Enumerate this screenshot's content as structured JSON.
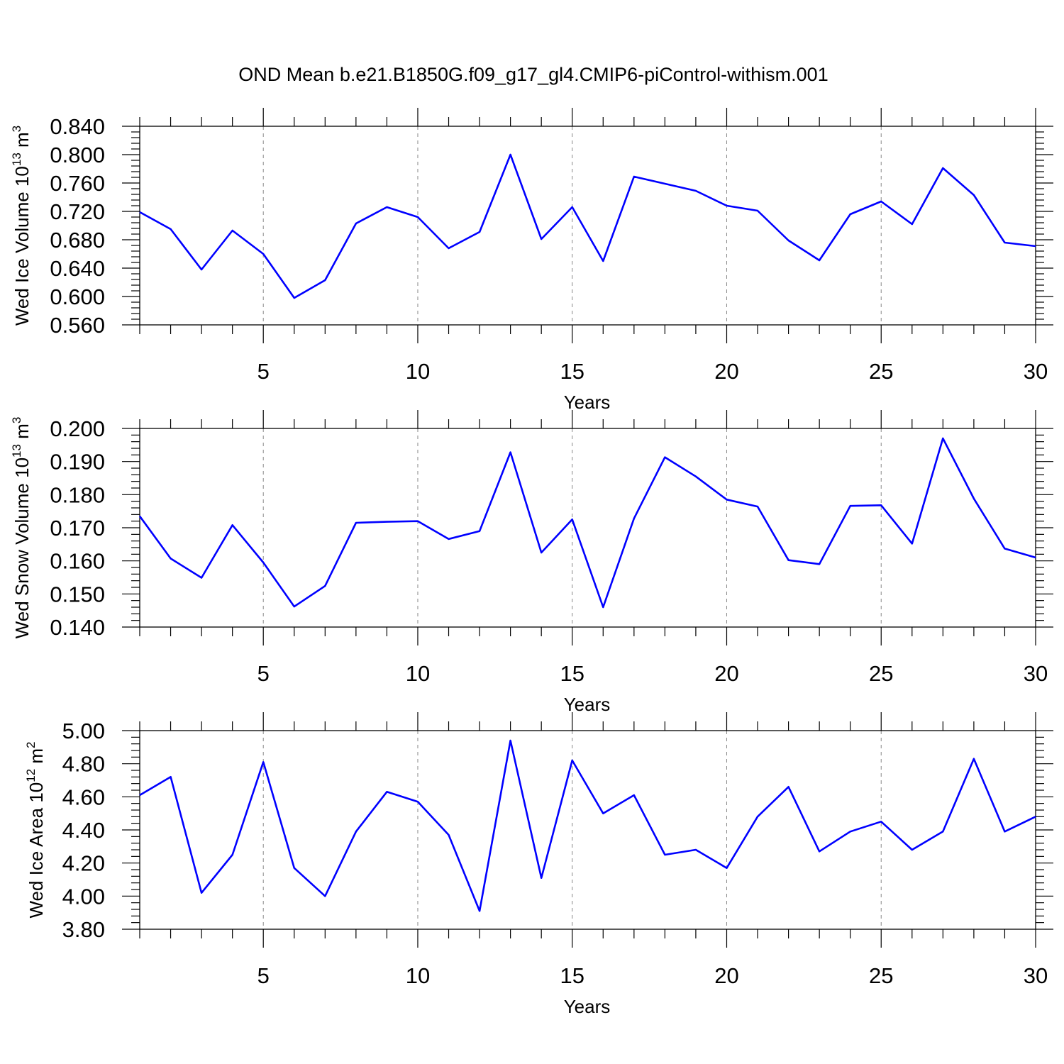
{
  "figure": {
    "title": "OND Mean b.e21.B1850G.f09_g17_gl4.CMIP6-piControl-withism.001"
  },
  "line_color": "#0000ff",
  "chart_data": [
    {
      "type": "line",
      "xlabel": "Years",
      "ylabel": "Wed Ice Volume 10",
      "ylabel_exp": "13",
      "ylabel_unit": " m",
      "ylabel_unit_exp": "3",
      "xlim": [
        1,
        30
      ],
      "ylim": [
        0.56,
        0.84
      ],
      "grid_x": true,
      "x_ticks": [
        5,
        10,
        15,
        20,
        25,
        30
      ],
      "y_ticks": [
        "0.840",
        "0.800",
        "0.760",
        "0.720",
        "0.680",
        "0.640",
        "0.600",
        "0.560"
      ],
      "x": [
        1,
        2,
        3,
        4,
        5,
        6,
        7,
        8,
        9,
        10,
        11,
        12,
        13,
        14,
        15,
        16,
        17,
        18,
        19,
        20,
        21,
        22,
        23,
        24,
        25,
        26,
        27,
        28,
        29,
        30
      ],
      "series": [
        {
          "values": [
            0.719,
            0.695,
            0.638,
            0.693,
            0.66,
            0.598,
            0.623,
            0.703,
            0.726,
            0.712,
            0.668,
            0.691,
            0.8,
            0.681,
            0.726,
            0.65,
            0.769,
            0.759,
            0.749,
            0.728,
            0.721,
            0.679,
            0.651,
            0.716,
            0.734,
            0.702,
            0.781,
            0.743,
            0.676,
            0.671
          ]
        }
      ]
    },
    {
      "type": "line",
      "xlabel": "Years",
      "ylabel": "Wed Snow Volume 10",
      "ylabel_exp": "13",
      "ylabel_unit": " m",
      "ylabel_unit_exp": "3",
      "xlim": [
        1,
        30
      ],
      "ylim": [
        0.14,
        0.2
      ],
      "grid_x": true,
      "x_ticks": [
        5,
        10,
        15,
        20,
        25,
        30
      ],
      "y_ticks": [
        "0.200",
        "0.190",
        "0.180",
        "0.170",
        "0.160",
        "0.150",
        "0.140"
      ],
      "x": [
        1,
        2,
        3,
        4,
        5,
        6,
        7,
        8,
        9,
        10,
        11,
        12,
        13,
        14,
        15,
        16,
        17,
        18,
        19,
        20,
        21,
        22,
        23,
        24,
        25,
        26,
        27,
        28,
        29,
        30
      ],
      "series": [
        {
          "values": [
            0.1735,
            0.1607,
            0.1549,
            0.1708,
            0.1595,
            0.1462,
            0.1524,
            0.1715,
            0.1718,
            0.172,
            0.1666,
            0.169,
            0.1928,
            0.1625,
            0.1725,
            0.146,
            0.1728,
            0.1913,
            0.1855,
            0.1785,
            0.1764,
            0.1602,
            0.159,
            0.1766,
            0.1768,
            0.1652,
            0.197,
            0.1788,
            0.1637,
            0.161
          ]
        }
      ]
    },
    {
      "type": "line",
      "xlabel": "Years",
      "ylabel": "Wed Ice Area 10",
      "ylabel_exp": "12",
      "ylabel_unit": " m",
      "ylabel_unit_exp": "2",
      "xlim": [
        1,
        30
      ],
      "ylim": [
        3.8,
        5.0
      ],
      "grid_x": true,
      "x_ticks": [
        5,
        10,
        15,
        20,
        25,
        30
      ],
      "y_ticks": [
        "5.00",
        "4.80",
        "4.60",
        "4.40",
        "4.20",
        "4.00",
        "3.80"
      ],
      "x": [
        1,
        2,
        3,
        4,
        5,
        6,
        7,
        8,
        9,
        10,
        11,
        12,
        13,
        14,
        15,
        16,
        17,
        18,
        19,
        20,
        21,
        22,
        23,
        24,
        25,
        26,
        27,
        28,
        29,
        30
      ],
      "series": [
        {
          "values": [
            4.61,
            4.72,
            4.02,
            4.25,
            4.81,
            4.17,
            4.0,
            4.39,
            4.63,
            4.57,
            4.37,
            3.91,
            4.94,
            4.11,
            4.82,
            4.5,
            4.61,
            4.25,
            4.28,
            4.17,
            4.48,
            4.66,
            4.27,
            4.39,
            4.45,
            4.28,
            4.39,
            4.83,
            4.39,
            4.48
          ]
        }
      ]
    }
  ]
}
